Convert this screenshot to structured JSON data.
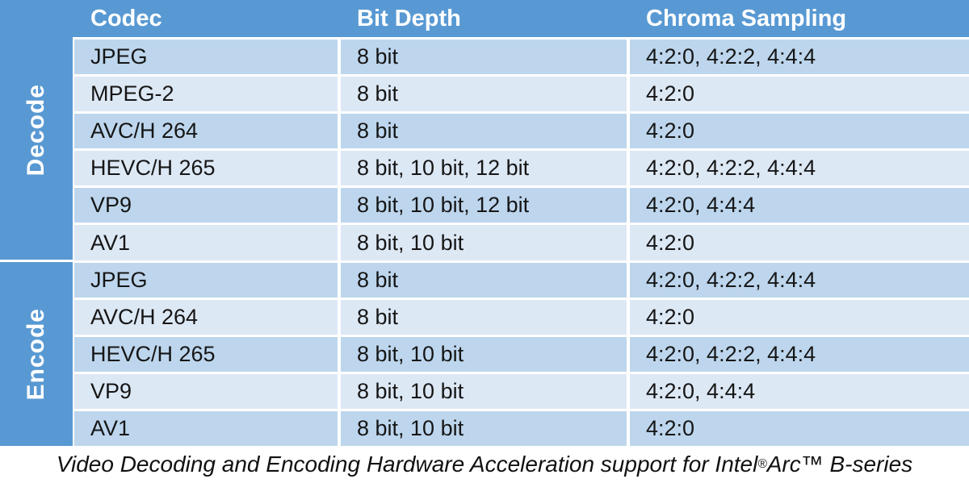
{
  "chart_data": {
    "type": "table",
    "title": "Video Decoding and Encoding Hardware Acceleration support for Intel® Arc™ B-series",
    "columns": [
      "Codec",
      "Bit Depth",
      "Chroma Sampling"
    ],
    "row_groups": [
      {
        "group": "Decode",
        "rows": [
          {
            "codec": "JPEG",
            "bit_depth": "8 bit",
            "chroma_sampling": "4:2:0, 4:2:2, 4:4:4"
          },
          {
            "codec": "MPEG-2",
            "bit_depth": "8 bit",
            "chroma_sampling": "4:2:0"
          },
          {
            "codec": "AVC/H 264",
            "bit_depth": "8 bit",
            "chroma_sampling": "4:2:0"
          },
          {
            "codec": "HEVC/H 265",
            "bit_depth": "8 bit, 10 bit, 12 bit",
            "chroma_sampling": "4:2:0, 4:2:2, 4:4:4"
          },
          {
            "codec": "VP9",
            "bit_depth": "8 bit, 10 bit, 12 bit",
            "chroma_sampling": "4:2:0, 4:4:4"
          },
          {
            "codec": "AV1",
            "bit_depth": "8 bit, 10 bit",
            "chroma_sampling": "4:2:0"
          }
        ]
      },
      {
        "group": "Encode",
        "rows": [
          {
            "codec": "JPEG",
            "bit_depth": "8 bit",
            "chroma_sampling": "4:2:0, 4:2:2, 4:4:4"
          },
          {
            "codec": "AVC/H 264",
            "bit_depth": "8 bit",
            "chroma_sampling": "4:2:0"
          },
          {
            "codec": "HEVC/H 265",
            "bit_depth": "8 bit, 10 bit",
            "chroma_sampling": "4:2:0, 4:2:2, 4:4:4"
          },
          {
            "codec": "VP9",
            "bit_depth": "8 bit, 10 bit",
            "chroma_sampling": "4:2:0, 4:4:4"
          },
          {
            "codec": "AV1",
            "bit_depth": "8 bit, 10 bit",
            "chroma_sampling": "4:2:0"
          }
        ]
      }
    ],
    "caption": {
      "prefix": "Video Decoding and Encoding Hardware Acceleration support for Intel",
      "registered_mark": "®",
      "suffix": " Arc™ B-series"
    },
    "layout_hints": {
      "banding": "alternating dark/light blue rows per section",
      "section_labels_rotated": "bottom-to-top"
    }
  },
  "colors": {
    "header_blue": "#5899D3",
    "band_dark": "#BDD6ED",
    "band_light": "#DDE8F5",
    "header_text": "#FFFFFF",
    "body_text": "#161616",
    "caption_text": "#111111",
    "background": "#FFFFFF"
  }
}
